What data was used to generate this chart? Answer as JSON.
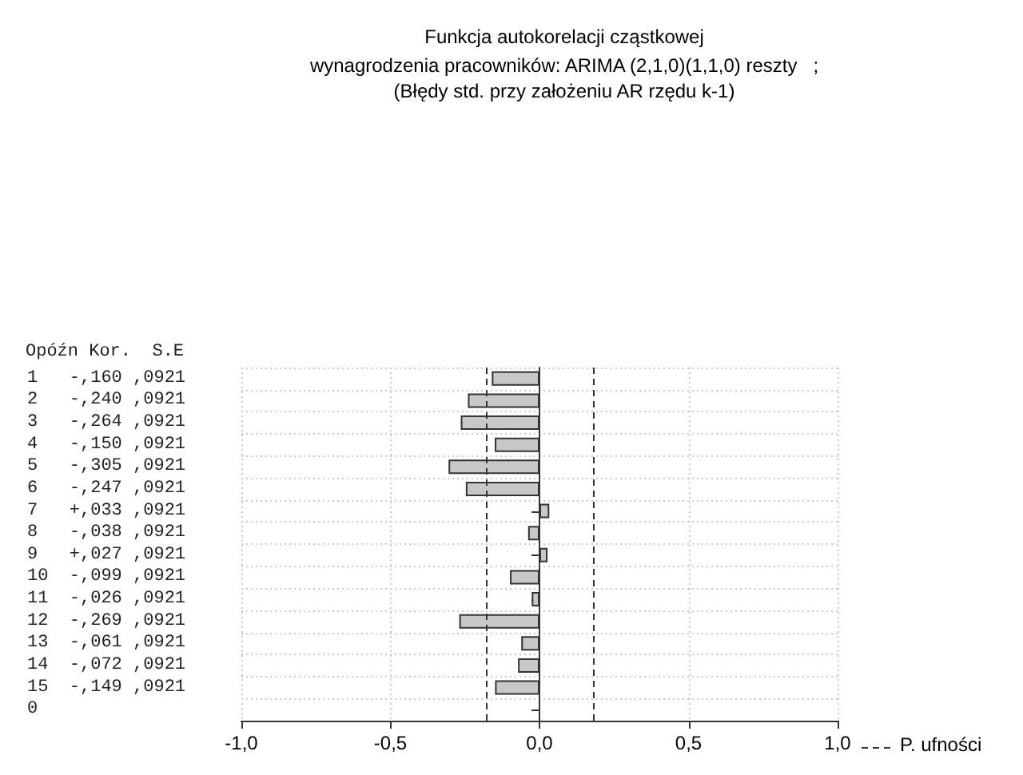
{
  "chart_data": {
    "type": "bar",
    "orientation": "horizontal",
    "title": "Funkcja autokorelacji cząstkowej",
    "subtitle": "wynagrodzenia pracowników: ARIMA (2,1,0)(1,1,0) reszty   ;\n(Błędy std. przy założeniu AR rzędu k-1)",
    "annotations": [
      "Opóźn Kor.  S.E"
    ],
    "categories": [
      "1   -,160 ,0921",
      "2   -,240 ,0921",
      "3   -,264 ,0921",
      "4   -,150 ,0921",
      "5   -,305 ,0921",
      "6   -,247 ,0921",
      "7   +,033 ,0921",
      "8   -,038 ,0921",
      "9   +,027 ,0921",
      "10  -,099 ,0921",
      "11  -,026 ,0921",
      "12  -,269 ,0921",
      "13  -,061 ,0921",
      "14  -,072 ,0921",
      "15  -,149 ,0921",
      "0"
    ],
    "values": [
      -0.16,
      -0.24,
      -0.264,
      -0.15,
      -0.305,
      -0.247,
      0.033,
      -0.038,
      0.027,
      -0.099,
      -0.026,
      -0.269,
      -0.061,
      -0.072,
      -0.149,
      null
    ],
    "color": "#c8c8c8",
    "xlim": [
      -1,
      1
    ],
    "xticks": [
      {
        "value": -1,
        "label": "-1,0"
      },
      {
        "value": -0.5,
        "label": "-0,5"
      },
      {
        "value": 0,
        "label": "0,0"
      },
      {
        "value": 0.5,
        "label": "0,5"
      },
      {
        "value": 1,
        "label": "1,0"
      }
    ],
    "ref_lines": [
      {
        "axis": "x",
        "value": -0.1805,
        "label": "P. ufności",
        "line_style": "dashed",
        "color": "#333333"
      },
      {
        "axis": "x",
        "value": 0.1805,
        "label": null,
        "line_style": "dashed",
        "color": "#333333"
      }
    ],
    "grid": true
  }
}
